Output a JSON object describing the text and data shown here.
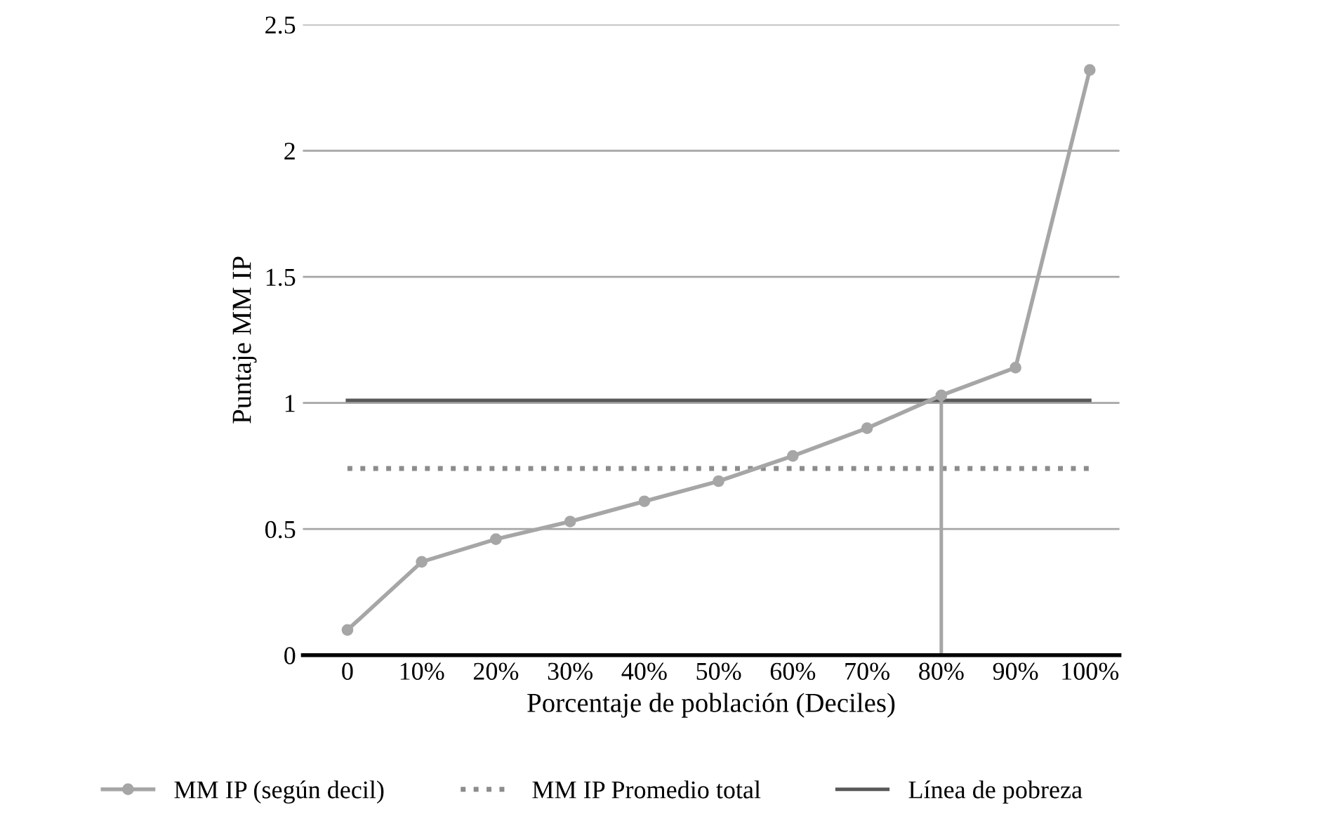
{
  "chart_data": {
    "type": "line",
    "xlabel": "Porcentaje de población (Deciles)",
    "ylabel": "Puntaje MM IP",
    "categories": [
      "0",
      "10%",
      "20%",
      "30%",
      "40%",
      "50%",
      "60%",
      "70%",
      "80%",
      "90%",
      "100%"
    ],
    "series": [
      {
        "name": "MM IP (según decil)",
        "color": "#a6a6a6",
        "values": [
          0.1,
          0.37,
          0.46,
          0.53,
          0.61,
          0.69,
          0.79,
          0.9,
          1.03,
          1.14,
          2.32
        ]
      }
    ],
    "marker": "circle",
    "ref_lines": [
      {
        "axis": "y",
        "value": 0.74,
        "label": "MM IP Promedio total",
        "color": "#8c8c8c",
        "line_style": "dotted"
      },
      {
        "axis": "y",
        "value": 1.01,
        "label": "Línea de pobreza",
        "color": "#595959",
        "line_style": "solid"
      },
      {
        "axis": "x",
        "value": "80%",
        "color": "#a6a6a6",
        "line_style": "solid"
      }
    ],
    "ylim": [
      0,
      2.5
    ],
    "yticks": [
      0,
      0.5,
      1,
      1.5,
      2,
      2.5
    ],
    "grid": "y",
    "legend": "bottom"
  }
}
